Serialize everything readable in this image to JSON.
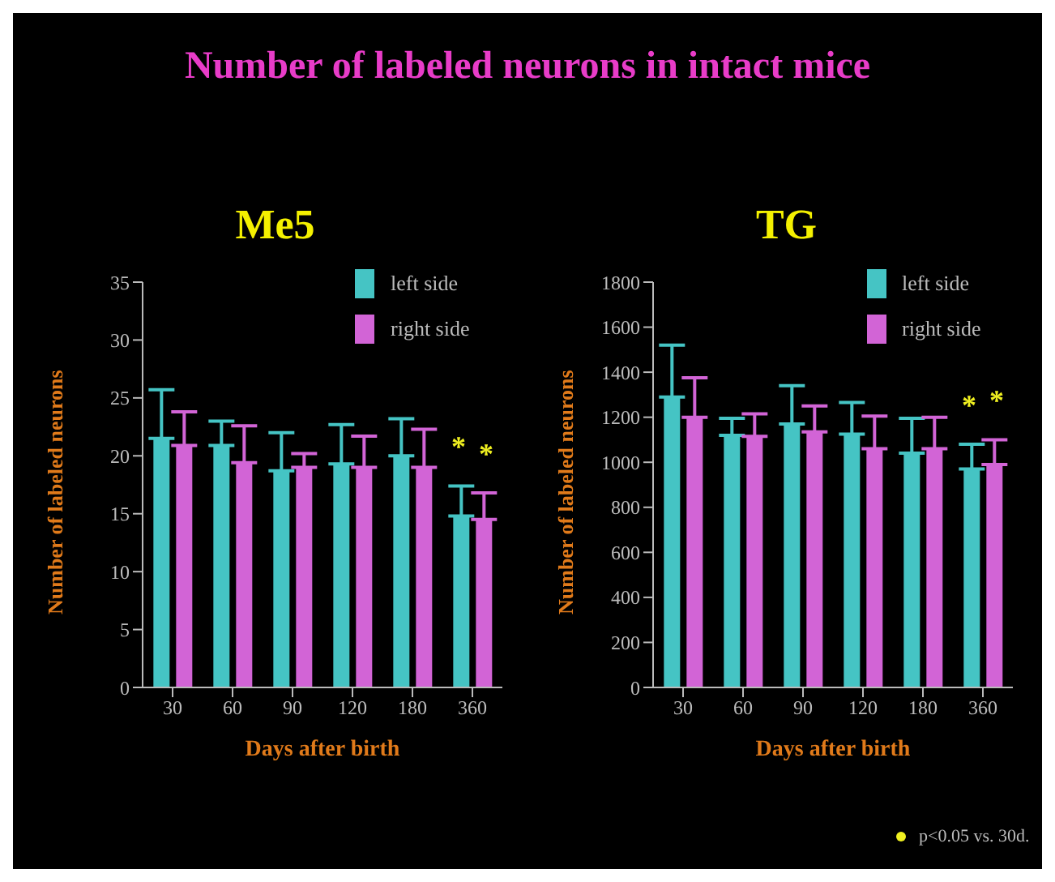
{
  "chart_data": [
    {
      "type": "bar",
      "title": "Number of labeled neurons in intact mice",
      "subtitle": "Me5",
      "xlabel": "Days after birth",
      "ylabel": "Number of labeled neurons",
      "categories": [
        "30",
        "60",
        "90",
        "120",
        "180",
        "360"
      ],
      "series": [
        {
          "name": "left side",
          "color": "#45c4c4",
          "values": [
            21.5,
            20.9,
            18.7,
            19.3,
            20.0,
            14.8
          ],
          "errors": [
            [
              21.5,
              25.7
            ],
            [
              20.9,
              23.0
            ],
            [
              18.7,
              22.0
            ],
            [
              19.3,
              22.7
            ],
            [
              20.0,
              23.2
            ],
            [
              14.8,
              17.4
            ]
          ]
        },
        {
          "name": "right side",
          "color": "#d264d6",
          "values": [
            20.9,
            19.4,
            19.0,
            19.0,
            19.0,
            14.5
          ],
          "errors": [
            [
              20.9,
              23.8
            ],
            [
              19.4,
              22.6
            ],
            [
              19.0,
              20.2
            ],
            [
              19.0,
              21.7
            ],
            [
              19.0,
              22.3
            ],
            [
              14.5,
              16.8
            ]
          ]
        }
      ],
      "ylim": [
        0,
        35
      ],
      "yticks": [
        0,
        5,
        10,
        15,
        20,
        25,
        30,
        35
      ],
      "legend": "top right",
      "grid": false,
      "annotations": [
        "*",
        "*"
      ]
    },
    {
      "type": "bar",
      "subtitle": "TG",
      "xlabel": "Days after birth",
      "ylabel": "Number of labeled neurons",
      "categories": [
        "30",
        "60",
        "90",
        "120",
        "180",
        "360"
      ],
      "series": [
        {
          "name": "left side",
          "color": "#45c4c4",
          "values": [
            1290,
            1120,
            1170,
            1125,
            1040,
            970
          ],
          "errors": [
            [
              1290,
              1520
            ],
            [
              1120,
              1195
            ],
            [
              1170,
              1340
            ],
            [
              1125,
              1265
            ],
            [
              1040,
              1195
            ],
            [
              970,
              1080
            ]
          ]
        },
        {
          "name": "right side",
          "color": "#d264d6",
          "values": [
            1200,
            1115,
            1135,
            1060,
            1060,
            990
          ],
          "errors": [
            [
              1200,
              1375
            ],
            [
              1115,
              1215
            ],
            [
              1135,
              1250
            ],
            [
              1060,
              1205
            ],
            [
              1060,
              1200
            ],
            [
              990,
              1100
            ]
          ]
        }
      ],
      "ylim": [
        0,
        1800
      ],
      "yticks": [
        0,
        200,
        400,
        600,
        800,
        1000,
        1200,
        1400,
        1600,
        1800
      ],
      "legend": "top right",
      "grid": false,
      "annotations": [
        "*",
        "*",
        "p<0.05 vs. 30d."
      ]
    }
  ]
}
